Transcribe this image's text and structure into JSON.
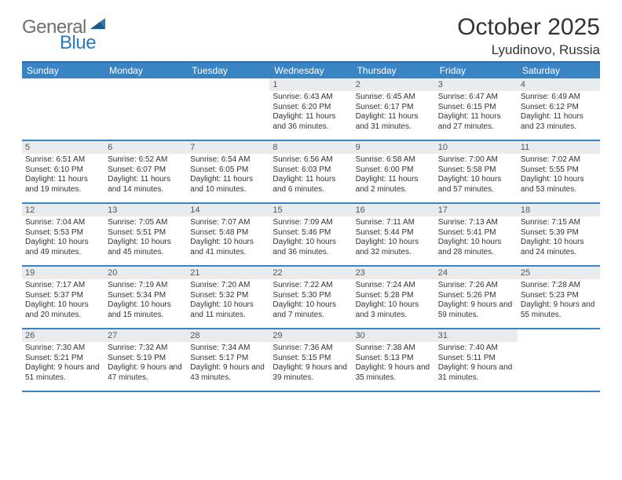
{
  "logo": {
    "general": "General",
    "blue": "Blue"
  },
  "title": "October 2025",
  "location": "Lyudinovo, Russia",
  "colors": {
    "header_bg": "#3b84c4",
    "header_border": "#2a6da8",
    "daynum_bg": "#e9ecef",
    "logo_gray": "#707070",
    "logo_blue": "#2a7ab8",
    "text": "#333333",
    "bg": "#ffffff"
  },
  "day_headers": [
    "Sunday",
    "Monday",
    "Tuesday",
    "Wednesday",
    "Thursday",
    "Friday",
    "Saturday"
  ],
  "weeks": [
    [
      {
        "n": "",
        "sr": "",
        "ss": "",
        "dl": ""
      },
      {
        "n": "",
        "sr": "",
        "ss": "",
        "dl": ""
      },
      {
        "n": "",
        "sr": "",
        "ss": "",
        "dl": ""
      },
      {
        "n": "1",
        "sr": "Sunrise: 6:43 AM",
        "ss": "Sunset: 6:20 PM",
        "dl": "Daylight: 11 hours and 36 minutes."
      },
      {
        "n": "2",
        "sr": "Sunrise: 6:45 AM",
        "ss": "Sunset: 6:17 PM",
        "dl": "Daylight: 11 hours and 31 minutes."
      },
      {
        "n": "3",
        "sr": "Sunrise: 6:47 AM",
        "ss": "Sunset: 6:15 PM",
        "dl": "Daylight: 11 hours and 27 minutes."
      },
      {
        "n": "4",
        "sr": "Sunrise: 6:49 AM",
        "ss": "Sunset: 6:12 PM",
        "dl": "Daylight: 11 hours and 23 minutes."
      }
    ],
    [
      {
        "n": "5",
        "sr": "Sunrise: 6:51 AM",
        "ss": "Sunset: 6:10 PM",
        "dl": "Daylight: 11 hours and 19 minutes."
      },
      {
        "n": "6",
        "sr": "Sunrise: 6:52 AM",
        "ss": "Sunset: 6:07 PM",
        "dl": "Daylight: 11 hours and 14 minutes."
      },
      {
        "n": "7",
        "sr": "Sunrise: 6:54 AM",
        "ss": "Sunset: 6:05 PM",
        "dl": "Daylight: 11 hours and 10 minutes."
      },
      {
        "n": "8",
        "sr": "Sunrise: 6:56 AM",
        "ss": "Sunset: 6:03 PM",
        "dl": "Daylight: 11 hours and 6 minutes."
      },
      {
        "n": "9",
        "sr": "Sunrise: 6:58 AM",
        "ss": "Sunset: 6:00 PM",
        "dl": "Daylight: 11 hours and 2 minutes."
      },
      {
        "n": "10",
        "sr": "Sunrise: 7:00 AM",
        "ss": "Sunset: 5:58 PM",
        "dl": "Daylight: 10 hours and 57 minutes."
      },
      {
        "n": "11",
        "sr": "Sunrise: 7:02 AM",
        "ss": "Sunset: 5:55 PM",
        "dl": "Daylight: 10 hours and 53 minutes."
      }
    ],
    [
      {
        "n": "12",
        "sr": "Sunrise: 7:04 AM",
        "ss": "Sunset: 5:53 PM",
        "dl": "Daylight: 10 hours and 49 minutes."
      },
      {
        "n": "13",
        "sr": "Sunrise: 7:05 AM",
        "ss": "Sunset: 5:51 PM",
        "dl": "Daylight: 10 hours and 45 minutes."
      },
      {
        "n": "14",
        "sr": "Sunrise: 7:07 AM",
        "ss": "Sunset: 5:48 PM",
        "dl": "Daylight: 10 hours and 41 minutes."
      },
      {
        "n": "15",
        "sr": "Sunrise: 7:09 AM",
        "ss": "Sunset: 5:46 PM",
        "dl": "Daylight: 10 hours and 36 minutes."
      },
      {
        "n": "16",
        "sr": "Sunrise: 7:11 AM",
        "ss": "Sunset: 5:44 PM",
        "dl": "Daylight: 10 hours and 32 minutes."
      },
      {
        "n": "17",
        "sr": "Sunrise: 7:13 AM",
        "ss": "Sunset: 5:41 PM",
        "dl": "Daylight: 10 hours and 28 minutes."
      },
      {
        "n": "18",
        "sr": "Sunrise: 7:15 AM",
        "ss": "Sunset: 5:39 PM",
        "dl": "Daylight: 10 hours and 24 minutes."
      }
    ],
    [
      {
        "n": "19",
        "sr": "Sunrise: 7:17 AM",
        "ss": "Sunset: 5:37 PM",
        "dl": "Daylight: 10 hours and 20 minutes."
      },
      {
        "n": "20",
        "sr": "Sunrise: 7:19 AM",
        "ss": "Sunset: 5:34 PM",
        "dl": "Daylight: 10 hours and 15 minutes."
      },
      {
        "n": "21",
        "sr": "Sunrise: 7:20 AM",
        "ss": "Sunset: 5:32 PM",
        "dl": "Daylight: 10 hours and 11 minutes."
      },
      {
        "n": "22",
        "sr": "Sunrise: 7:22 AM",
        "ss": "Sunset: 5:30 PM",
        "dl": "Daylight: 10 hours and 7 minutes."
      },
      {
        "n": "23",
        "sr": "Sunrise: 7:24 AM",
        "ss": "Sunset: 5:28 PM",
        "dl": "Daylight: 10 hours and 3 minutes."
      },
      {
        "n": "24",
        "sr": "Sunrise: 7:26 AM",
        "ss": "Sunset: 5:26 PM",
        "dl": "Daylight: 9 hours and 59 minutes."
      },
      {
        "n": "25",
        "sr": "Sunrise: 7:28 AM",
        "ss": "Sunset: 5:23 PM",
        "dl": "Daylight: 9 hours and 55 minutes."
      }
    ],
    [
      {
        "n": "26",
        "sr": "Sunrise: 7:30 AM",
        "ss": "Sunset: 5:21 PM",
        "dl": "Daylight: 9 hours and 51 minutes."
      },
      {
        "n": "27",
        "sr": "Sunrise: 7:32 AM",
        "ss": "Sunset: 5:19 PM",
        "dl": "Daylight: 9 hours and 47 minutes."
      },
      {
        "n": "28",
        "sr": "Sunrise: 7:34 AM",
        "ss": "Sunset: 5:17 PM",
        "dl": "Daylight: 9 hours and 43 minutes."
      },
      {
        "n": "29",
        "sr": "Sunrise: 7:36 AM",
        "ss": "Sunset: 5:15 PM",
        "dl": "Daylight: 9 hours and 39 minutes."
      },
      {
        "n": "30",
        "sr": "Sunrise: 7:38 AM",
        "ss": "Sunset: 5:13 PM",
        "dl": "Daylight: 9 hours and 35 minutes."
      },
      {
        "n": "31",
        "sr": "Sunrise: 7:40 AM",
        "ss": "Sunset: 5:11 PM",
        "dl": "Daylight: 9 hours and 31 minutes."
      },
      {
        "n": "",
        "sr": "",
        "ss": "",
        "dl": ""
      }
    ]
  ]
}
